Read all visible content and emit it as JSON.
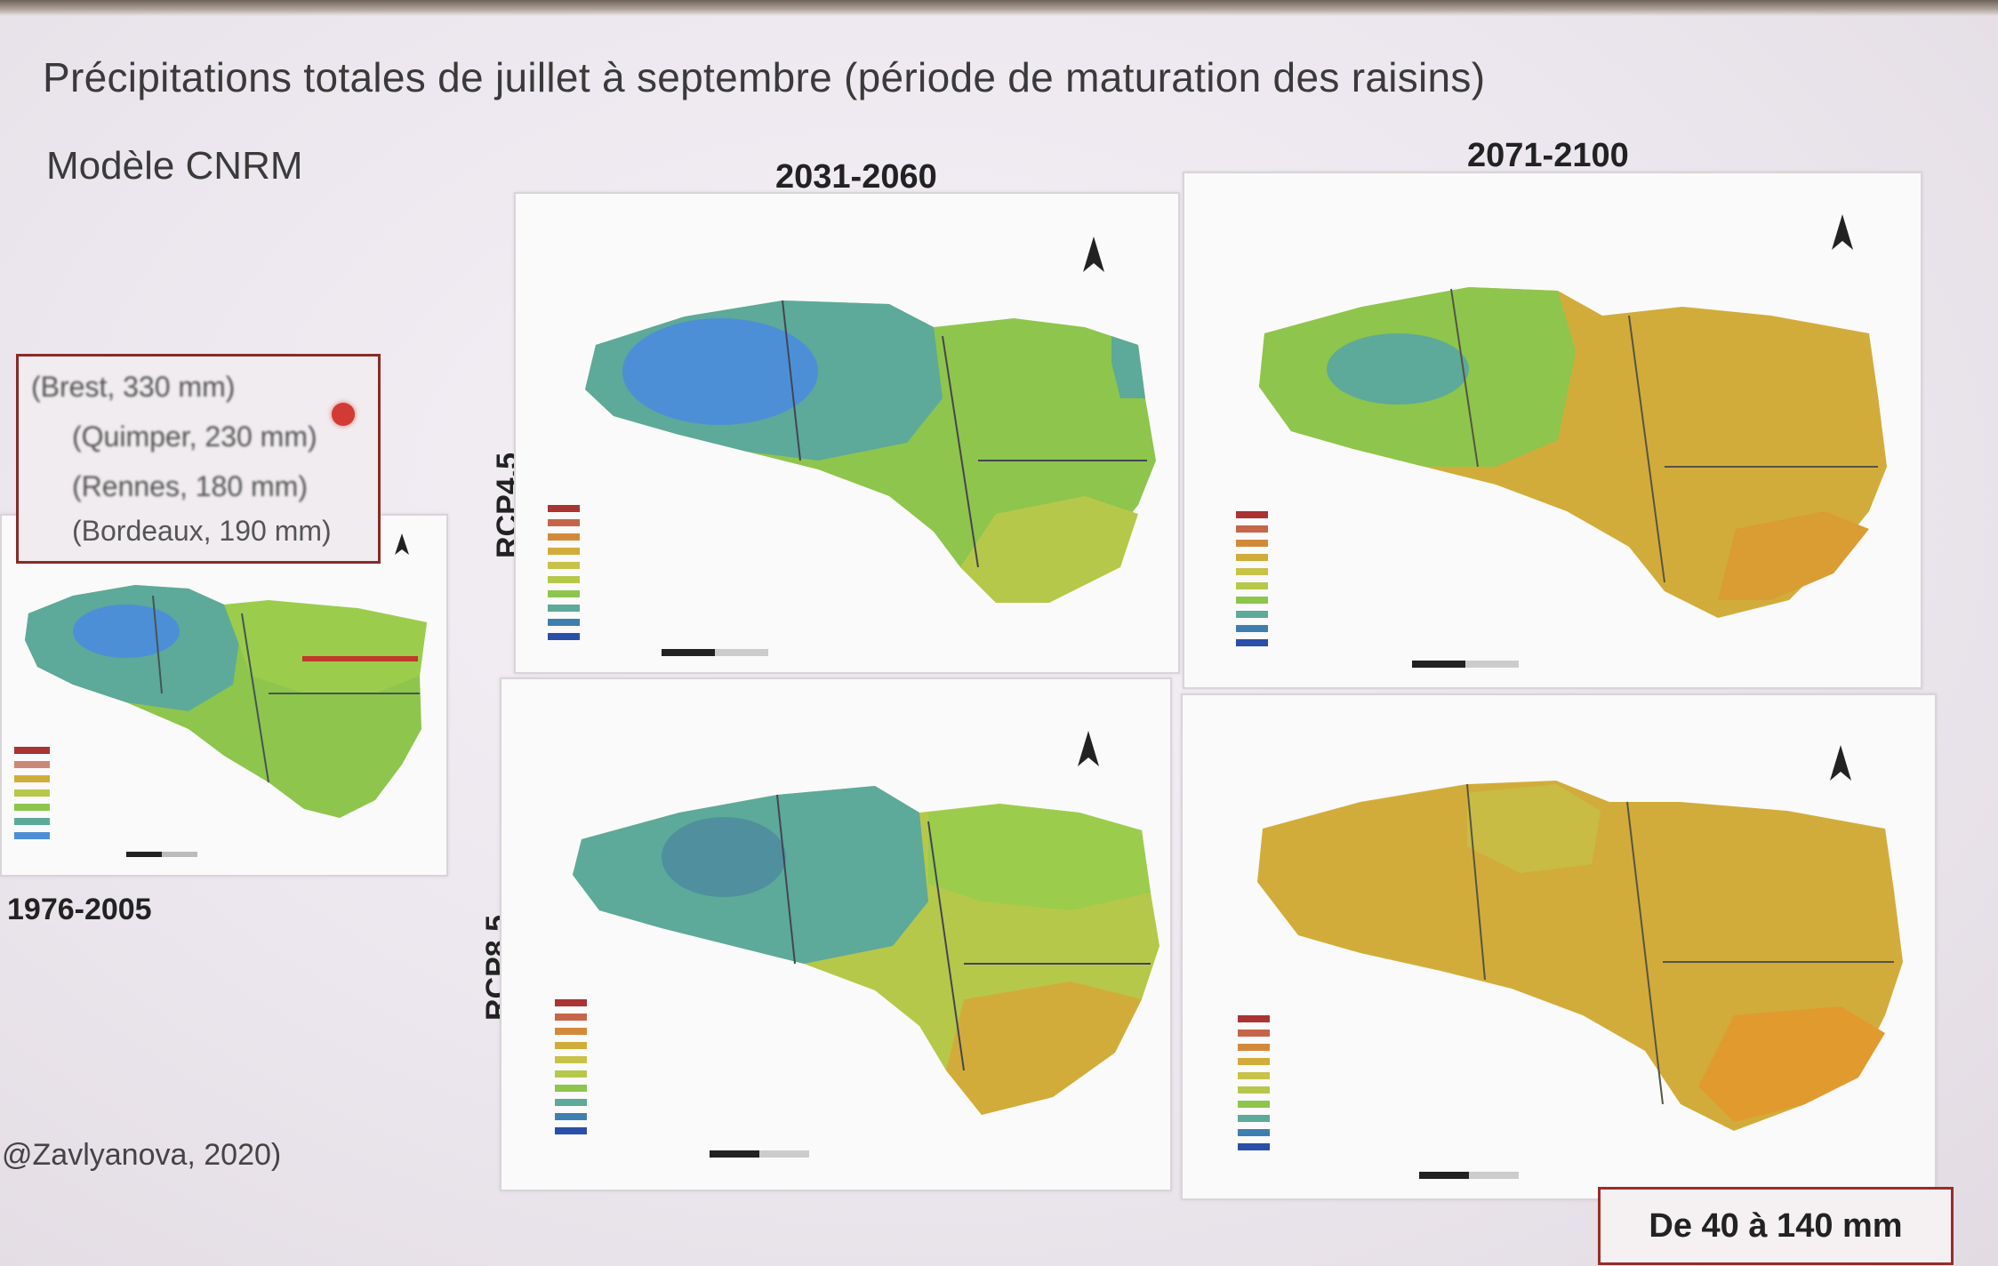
{
  "slide": {
    "title": "Précipitations totales  de juillet à septembre (période de maturation des raisins)",
    "model": "Modèle CNRM",
    "citation": "@Zavlyanova, 2020)",
    "range_note": "De 40 à 140 mm",
    "reference_period": "1976-2005"
  },
  "periods": [
    "2031-2060",
    "2071-2100"
  ],
  "scenarios": [
    "RCP4.5",
    "RCP8.5"
  ],
  "reference_legend": {
    "items": [
      "(Brest, 330 mm)",
      "(Quimper, 230 mm)",
      "(Rennes, 180 mm)",
      "(Bordeaux, 190 mm)"
    ]
  },
  "colors": {
    "accent_border": "#8a2a26",
    "blue": "#4d8fd6",
    "teal": "#5da99a",
    "green": "#8ec54c",
    "yellow_green": "#b6c84a",
    "mustard": "#d2ac3a",
    "orange": "#e09a2e"
  }
}
